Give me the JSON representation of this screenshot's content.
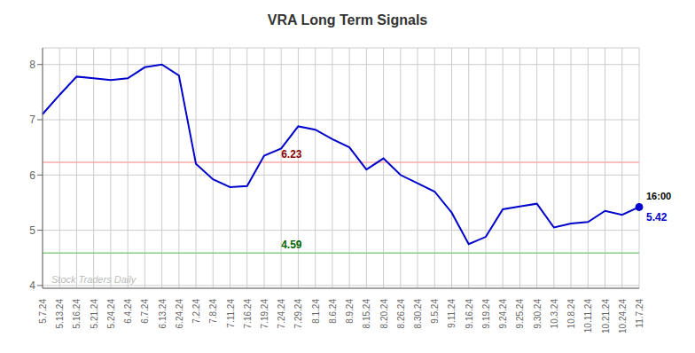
{
  "chart_data": {
    "type": "line",
    "title": "VRA Long Term Signals",
    "categories": [
      "5.7.24",
      "5.13.24",
      "5.16.24",
      "5.21.24",
      "5.24.24",
      "6.4.24",
      "6.7.24",
      "6.13.24",
      "6.24.24",
      "7.2.24",
      "7.8.24",
      "7.11.24",
      "7.16.24",
      "7.19.24",
      "7.24.24",
      "7.29.24",
      "8.1.24",
      "8.6.24",
      "8.9.24",
      "8.15.24",
      "8.20.24",
      "8.26.24",
      "8.30.24",
      "9.5.24",
      "9.11.24",
      "9.16.24",
      "9.19.24",
      "9.24.24",
      "9.25.24",
      "9.30.24",
      "10.3.24",
      "10.8.24",
      "10.11.24",
      "10.21.24",
      "10.24.24",
      "11.7.24"
    ],
    "values": [
      7.1,
      7.45,
      7.78,
      7.75,
      7.72,
      7.75,
      7.95,
      8.0,
      7.8,
      6.2,
      5.92,
      5.78,
      5.8,
      6.35,
      6.48,
      6.88,
      6.82,
      6.65,
      6.5,
      6.1,
      6.3,
      6.0,
      5.85,
      5.7,
      5.32,
      4.75,
      4.88,
      5.38,
      5.43,
      5.48,
      5.05,
      5.12,
      5.15,
      5.35,
      5.28,
      5.42
    ],
    "color": "#0000cc",
    "ylim": [
      3.95,
      8.3
    ],
    "yticks": [
      4,
      5,
      6,
      7,
      8
    ],
    "grid": true,
    "reference_lines": [
      {
        "value": 6.23,
        "label": "6.23",
        "color": "#ffaaaa",
        "label_color": "#8b0000",
        "x": "7.24.24"
      },
      {
        "value": 4.59,
        "label": "4.59",
        "color": "#88cc88",
        "label_color": "#006400",
        "x": "7.24.24"
      }
    ],
    "end_label": {
      "time": "16:00",
      "label": "5.42",
      "value": 5.42,
      "color": "#0000cc"
    },
    "watermark": "Stock Traders Daily"
  }
}
